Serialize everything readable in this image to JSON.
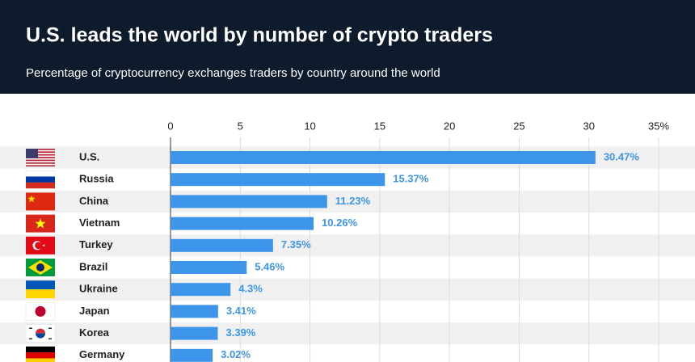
{
  "chart_data": {
    "type": "bar",
    "orientation": "horizontal",
    "title": "U.S. leads the world by number of crypto traders",
    "subtitle": "Percentage of cryptocurrency exchanges traders by country around the world",
    "categories": [
      "U.S.",
      "Russia",
      "China",
      "Vietnam",
      "Turkey",
      "Brazil",
      "Ukraine",
      "Japan",
      "Korea",
      "Germany"
    ],
    "values": [
      30.47,
      15.37,
      11.23,
      10.26,
      7.35,
      5.46,
      4.3,
      3.41,
      3.39,
      3.02
    ],
    "value_labels": [
      "30.47%",
      "15.37%",
      "11.23%",
      "10.26%",
      "7.35%",
      "5.46%",
      "4.3%",
      "3.41%",
      "3.39%",
      "3.02%"
    ],
    "color": "#3d95ea",
    "xlim": [
      0,
      35
    ],
    "xticks": [
      0,
      5,
      10,
      15,
      20,
      25,
      30,
      {
        "value": 35,
        "label": "35%"
      }
    ],
    "grid": true
  }
}
